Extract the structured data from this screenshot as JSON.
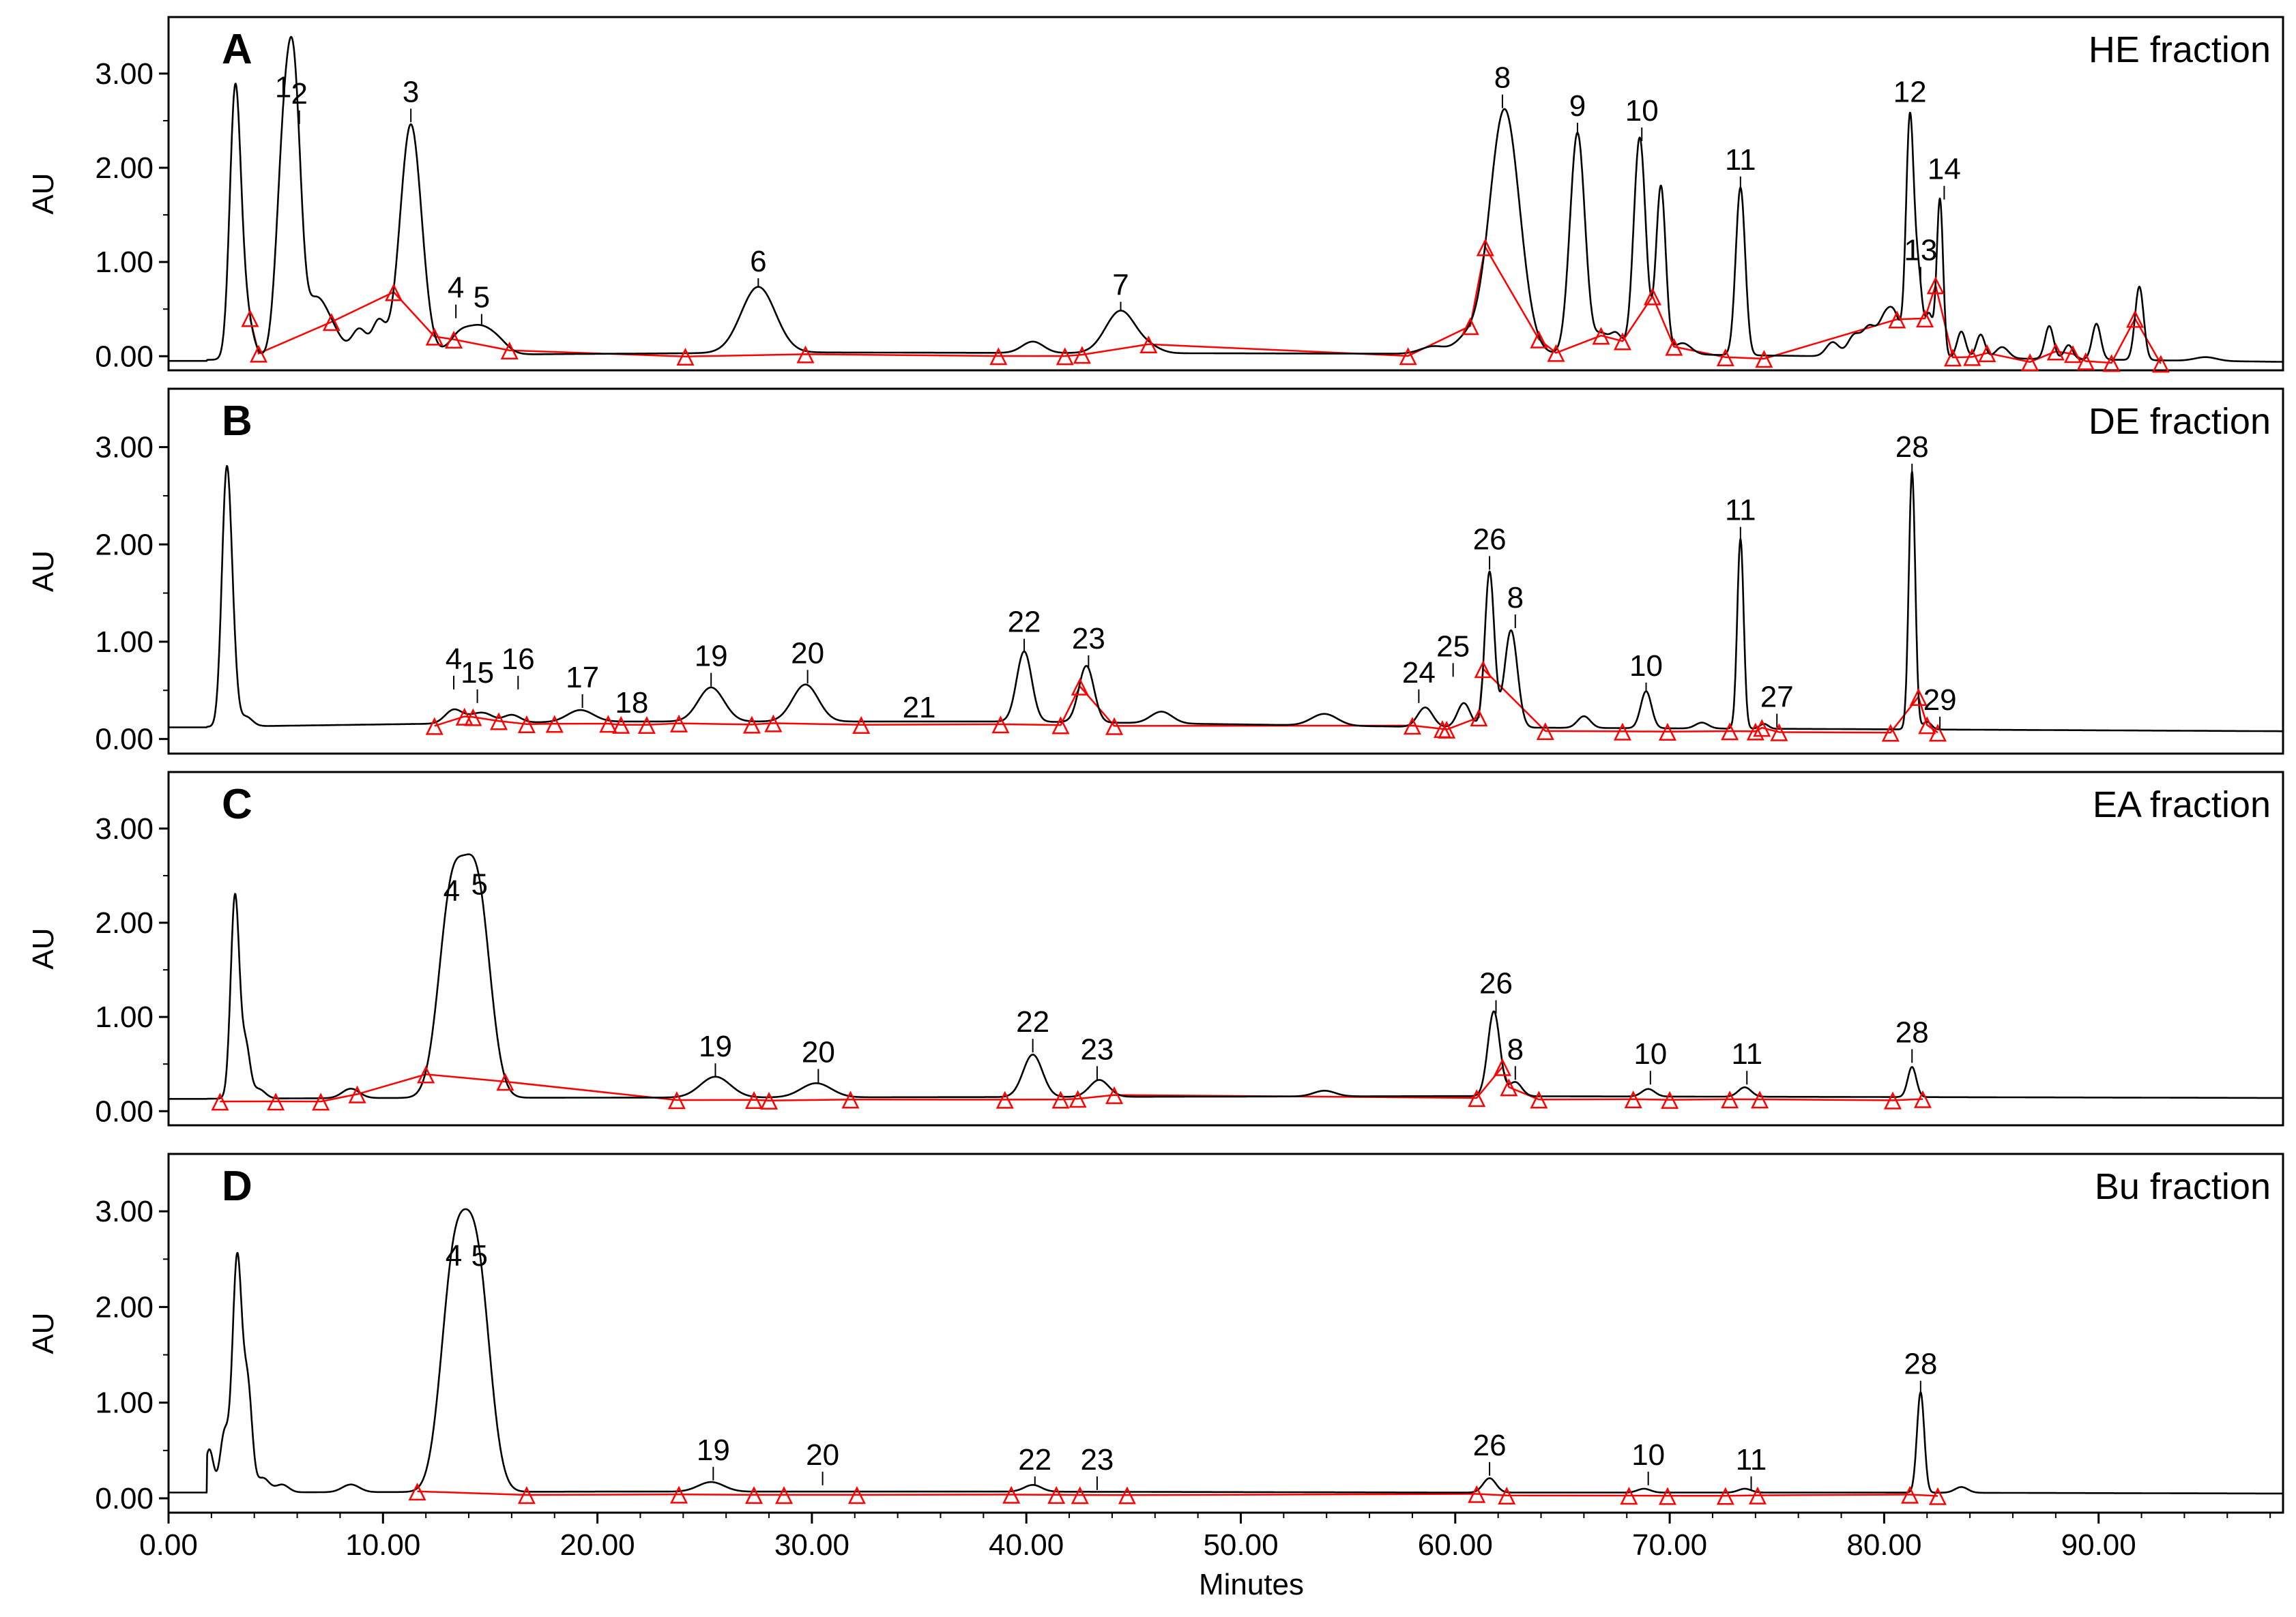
{
  "chart_data": {
    "type": "line",
    "xlabel": "Minutes",
    "ylabel": "AU",
    "xlim": [
      0,
      98.6
    ],
    "ylim": [
      -0.15,
      3.6
    ],
    "x_ticks": [
      "0.00",
      "10.00",
      "20.00",
      "30.00",
      "40.00",
      "50.00",
      "60.00",
      "70.00",
      "80.00",
      "90.00"
    ],
    "y_ticks": [
      "0.00",
      "1.00",
      "2.00",
      "3.00"
    ],
    "panels": [
      {
        "letter": "A",
        "title": "HE fraction",
        "baseline": [
          [
            0,
            -0.05
          ],
          [
            10,
            0.01
          ],
          [
            30,
            0.04
          ],
          [
            50,
            0.03
          ],
          [
            70,
            0.02
          ],
          [
            98.6,
            -0.06
          ]
        ],
        "peaks": [
          [
            3.1,
            2.6,
            0.25
          ],
          [
            3.5,
            0.6,
            0.35
          ],
          [
            5.4,
            2.3,
            0.35
          ],
          [
            5.9,
            2.2,
            0.3
          ],
          [
            6.8,
            0.55,
            0.5
          ],
          [
            7.6,
            0.25,
            0.5
          ],
          [
            8.9,
            0.28,
            0.35
          ],
          [
            9.8,
            0.35,
            0.3
          ],
          [
            11.3,
            2.45,
            0.5
          ],
          [
            13.6,
            0.22,
            0.5
          ],
          [
            14.5,
            0.23,
            0.5
          ],
          [
            15.3,
            0.15,
            0.5
          ],
          [
            27.5,
            0.7,
            0.8
          ],
          [
            40.3,
            0.12,
            0.5
          ],
          [
            44.4,
            0.45,
            0.7
          ],
          [
            45.8,
            0.05,
            0.5
          ],
          [
            59.0,
            0.08,
            0.6
          ],
          [
            60.5,
            0.15,
            0.5
          ],
          [
            62.3,
            2.6,
            0.7
          ],
          [
            65.7,
            2.35,
            0.35
          ],
          [
            66.8,
            0.2,
            0.3
          ],
          [
            67.5,
            0.22,
            0.3
          ],
          [
            68.6,
            2.3,
            0.28
          ],
          [
            69.5,
            0.25,
            0.25
          ],
          [
            69.6,
            1.55,
            0.22
          ],
          [
            70.6,
            0.12,
            0.4
          ],
          [
            73.3,
            1.78,
            0.22
          ],
          [
            77.6,
            0.15,
            0.3
          ],
          [
            78.6,
            0.22,
            0.3
          ],
          [
            79.3,
            0.3,
            0.3
          ],
          [
            80.0,
            0.35,
            0.3
          ],
          [
            80.5,
            0.4,
            0.3
          ],
          [
            81.2,
            2.5,
            0.18
          ],
          [
            81.6,
            0.82,
            0.18
          ],
          [
            82.1,
            0.45,
            0.18
          ],
          [
            82.6,
            1.68,
            0.15
          ],
          [
            83.6,
            0.28,
            0.2
          ],
          [
            84.5,
            0.25,
            0.2
          ],
          [
            85.5,
            0.12,
            0.3
          ],
          [
            87.7,
            0.35,
            0.2
          ],
          [
            88.6,
            0.15,
            0.2
          ],
          [
            89.9,
            0.38,
            0.2
          ],
          [
            91.9,
            0.78,
            0.2
          ],
          [
            95.0,
            0.04,
            0.5
          ]
        ],
        "labels": [
          {
            "text": "1",
            "x": 5.35,
            "y": 2.75
          },
          {
            "text": "2",
            "x": 6.1,
            "y": 2.68
          },
          {
            "text": "3",
            "x": 11.3,
            "y": 2.7
          },
          {
            "text": "4",
            "x": 13.4,
            "y": 0.62
          },
          {
            "text": "5",
            "x": 14.6,
            "y": 0.52
          },
          {
            "text": "6",
            "x": 27.5,
            "y": 0.9
          },
          {
            "text": "7",
            "x": 44.4,
            "y": 0.65
          },
          {
            "text": "8",
            "x": 62.2,
            "y": 2.85
          },
          {
            "text": "9",
            "x": 65.7,
            "y": 2.55
          },
          {
            "text": "10",
            "x": 68.7,
            "y": 2.5
          },
          {
            "text": "11",
            "x": 73.3,
            "y": 1.98
          },
          {
            "text": "12",
            "x": 81.2,
            "y": 2.7
          },
          {
            "text": "13",
            "x": 81.7,
            "y": 1.02
          },
          {
            "text": "14",
            "x": 82.8,
            "y": 1.88
          }
        ],
        "triangles": [
          3.8,
          4.2,
          7.6,
          10.5,
          12.4,
          13.3,
          15.9,
          24.1,
          29.7,
          38.7,
          41.8,
          42.6,
          45.7,
          57.8,
          60.7,
          61.4,
          63.9,
          64.7,
          66.8,
          67.8,
          69.2,
          70.2,
          72.6,
          74.4,
          80.6,
          81.9,
          82.4,
          83.2,
          84.1,
          84.8,
          86.8,
          88.0,
          88.8,
          89.4,
          90.6,
          91.7,
          92.9
        ]
      },
      {
        "letter": "B",
        "title": "DE fraction",
        "baseline": [
          [
            0,
            0.12
          ],
          [
            20,
            0.18
          ],
          [
            40,
            0.18
          ],
          [
            60,
            0.12
          ],
          [
            80,
            0.1
          ],
          [
            98.6,
            0.08
          ]
        ],
        "peaks": [
          [
            2.7,
            2.5,
            0.22
          ],
          [
            3.0,
            0.5,
            0.2
          ],
          [
            3.6,
            0.1,
            0.3
          ],
          [
            13.3,
            0.14,
            0.4
          ],
          [
            14.2,
            0.06,
            0.4
          ],
          [
            14.8,
            0.08,
            0.4
          ],
          [
            16.0,
            0.08,
            0.4
          ],
          [
            19.2,
            0.12,
            0.6
          ],
          [
            25.3,
            0.35,
            0.6
          ],
          [
            29.7,
            0.38,
            0.6
          ],
          [
            39.9,
            0.72,
            0.35
          ],
          [
            42.8,
            0.58,
            0.35
          ],
          [
            46.3,
            0.12,
            0.5
          ],
          [
            53.9,
            0.12,
            0.6
          ],
          [
            58.6,
            0.2,
            0.35
          ],
          [
            60.4,
            0.25,
            0.3
          ],
          [
            61.6,
            1.6,
            0.22
          ],
          [
            62.6,
            1.0,
            0.3
          ],
          [
            66.0,
            0.12,
            0.3
          ],
          [
            68.9,
            0.38,
            0.25
          ],
          [
            71.5,
            0.06,
            0.3
          ],
          [
            73.3,
            1.95,
            0.15
          ],
          [
            74.4,
            0.05,
            0.2
          ],
          [
            81.3,
            2.65,
            0.15
          ],
          [
            82.0,
            0.08,
            0.2
          ]
        ],
        "labels": [
          {
            "text": "4",
            "x": 13.3,
            "y": 0.72
          },
          {
            "text": "15",
            "x": 14.4,
            "y": 0.58
          },
          {
            "text": "16",
            "x": 16.3,
            "y": 0.72
          },
          {
            "text": "17",
            "x": 19.3,
            "y": 0.53
          },
          {
            "text": "18",
            "x": 21.6,
            "y": 0.27
          },
          {
            "text": "19",
            "x": 25.3,
            "y": 0.75
          },
          {
            "text": "20",
            "x": 29.8,
            "y": 0.78
          },
          {
            "text": "21",
            "x": 35.0,
            "y": 0.22
          },
          {
            "text": "22",
            "x": 39.9,
            "y": 1.1
          },
          {
            "text": "23",
            "x": 42.9,
            "y": 0.93
          },
          {
            "text": "24",
            "x": 58.3,
            "y": 0.58
          },
          {
            "text": "25",
            "x": 59.9,
            "y": 0.85
          },
          {
            "text": "26",
            "x": 61.6,
            "y": 1.95
          },
          {
            "text": "8",
            "x": 62.8,
            "y": 1.35
          },
          {
            "text": "10",
            "x": 68.9,
            "y": 0.65
          },
          {
            "text": "11",
            "x": 73.3,
            "y": 2.25
          },
          {
            "text": "27",
            "x": 75.0,
            "y": 0.33
          },
          {
            "text": "29",
            "x": 82.6,
            "y": 0.3
          },
          {
            "text": "28",
            "x": 81.3,
            "y": 2.9
          }
        ],
        "triangles": [
          12.4,
          13.8,
          14.2,
          15.4,
          16.7,
          18.0,
          20.5,
          21.1,
          22.3,
          23.8,
          27.2,
          28.2,
          32.3,
          38.8,
          41.6,
          42.5,
          44.1,
          58.0,
          59.4,
          59.6,
          61.1,
          61.3,
          64.2,
          67.8,
          69.9,
          72.8,
          74.0,
          74.3,
          75.1,
          80.3,
          81.6,
          82.0,
          82.5
        ]
      },
      {
        "letter": "C",
        "title": "EA fraction",
        "baseline": [
          [
            0,
            0.13
          ],
          [
            10,
            0.14
          ],
          [
            40,
            0.15
          ],
          [
            60,
            0.16
          ],
          [
            80,
            0.15
          ],
          [
            98.6,
            0.14
          ]
        ],
        "peaks": [
          [
            3.1,
            2.15,
            0.2
          ],
          [
            3.6,
            0.55,
            0.2
          ],
          [
            4.2,
            0.1,
            0.3
          ],
          [
            8.5,
            0.1,
            0.4
          ],
          [
            13.2,
            2.1,
            0.6
          ],
          [
            14.4,
            2.15,
            0.6
          ],
          [
            25.5,
            0.22,
            0.7
          ],
          [
            30.2,
            0.15,
            0.7
          ],
          [
            40.3,
            0.45,
            0.45
          ],
          [
            43.4,
            0.18,
            0.45
          ],
          [
            53.9,
            0.06,
            0.5
          ],
          [
            61.8,
            0.9,
            0.28
          ],
          [
            62.8,
            0.15,
            0.3
          ],
          [
            69.0,
            0.08,
            0.3
          ],
          [
            73.5,
            0.1,
            0.3
          ],
          [
            81.3,
            0.32,
            0.2
          ]
        ],
        "labels": [
          {
            "text": "4",
            "x": 13.2,
            "y": 2.23
          },
          {
            "text": "5",
            "x": 14.5,
            "y": 2.3
          },
          {
            "text": "19",
            "x": 25.5,
            "y": 0.58
          },
          {
            "text": "20",
            "x": 30.3,
            "y": 0.52
          },
          {
            "text": "22",
            "x": 40.3,
            "y": 0.84
          },
          {
            "text": "23",
            "x": 43.3,
            "y": 0.55
          },
          {
            "text": "26",
            "x": 61.9,
            "y": 1.25
          },
          {
            "text": "8",
            "x": 62.8,
            "y": 0.55
          },
          {
            "text": "10",
            "x": 69.1,
            "y": 0.5
          },
          {
            "text": "11",
            "x": 73.6,
            "y": 0.5
          },
          {
            "text": "28",
            "x": 81.3,
            "y": 0.73
          }
        ],
        "triangles": [
          2.4,
          5.0,
          7.1,
          8.8,
          12.0,
          15.7,
          23.7,
          27.3,
          28.0,
          31.8,
          39.0,
          41.6,
          42.4,
          44.1,
          61.0,
          62.2,
          62.5,
          63.9,
          68.3,
          70.0,
          72.8,
          74.2,
          80.4,
          81.8
        ]
      },
      {
        "letter": "D",
        "title": "Bu fraction",
        "baseline": [
          [
            0,
            0.06
          ],
          [
            20,
            0.07
          ],
          [
            40,
            0.07
          ],
          [
            60,
            0.06
          ],
          [
            80,
            0.06
          ],
          [
            98.6,
            0.05
          ]
        ],
        "peaks": [
          [
            1.9,
            0.45,
            0.2
          ],
          [
            2.6,
            0.6,
            0.2
          ],
          [
            3.2,
            2.45,
            0.22
          ],
          [
            3.7,
            1.05,
            0.2
          ],
          [
            4.4,
            0.15,
            0.3
          ],
          [
            5.3,
            0.08,
            0.3
          ],
          [
            8.5,
            0.08,
            0.4
          ],
          [
            13.3,
            2.25,
            0.6
          ],
          [
            14.4,
            2.25,
            0.6
          ],
          [
            25.3,
            0.1,
            0.6
          ],
          [
            40.3,
            0.07,
            0.4
          ],
          [
            61.6,
            0.15,
            0.3
          ],
          [
            68.8,
            0.04,
            0.3
          ],
          [
            73.5,
            0.04,
            0.3
          ],
          [
            81.7,
            1.05,
            0.17
          ],
          [
            83.6,
            0.06,
            0.3
          ]
        ],
        "labels": [
          {
            "text": "4",
            "x": 13.3,
            "y": 2.43
          },
          {
            "text": "5",
            "x": 14.5,
            "y": 2.43
          },
          {
            "text": "19",
            "x": 25.4,
            "y": 0.4
          },
          {
            "text": "20",
            "x": 30.5,
            "y": 0.35
          },
          {
            "text": "22",
            "x": 40.4,
            "y": 0.3
          },
          {
            "text": "23",
            "x": 43.3,
            "y": 0.3
          },
          {
            "text": "26",
            "x": 61.6,
            "y": 0.45
          },
          {
            "text": "10",
            "x": 69.0,
            "y": 0.35
          },
          {
            "text": "11",
            "x": 73.8,
            "y": 0.3
          },
          {
            "text": "28",
            "x": 81.7,
            "y": 1.3
          }
        ],
        "triangles": [
          11.6,
          16.7,
          23.8,
          27.3,
          28.7,
          32.1,
          39.3,
          41.4,
          42.5,
          44.7,
          61.0,
          62.4,
          68.1,
          69.9,
          72.6,
          74.1,
          81.2,
          82.5
        ]
      }
    ]
  }
}
